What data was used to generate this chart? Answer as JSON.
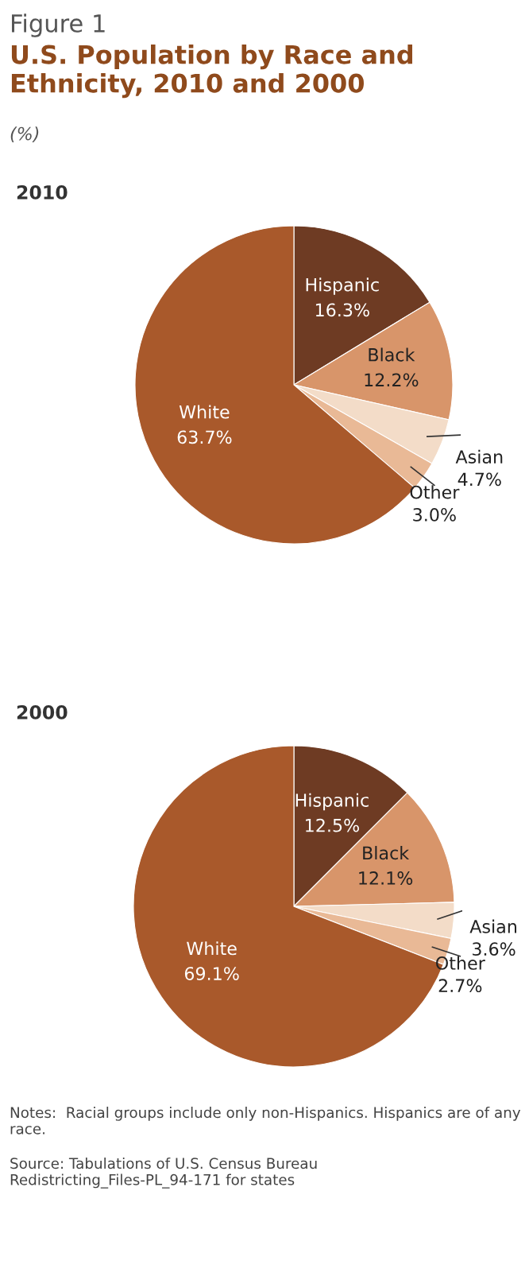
{
  "chart_data": [
    {
      "type": "pie",
      "title": "2010",
      "annotations": [
        "Figure 1",
        "U.S. Population by Race and Ethnicity, 2010 and 2000",
        "(%)"
      ],
      "categories": [
        "Hispanic",
        "Black",
        "Asian",
        "Other",
        "White"
      ],
      "values": [
        16.3,
        12.2,
        4.7,
        3.0,
        63.7
      ],
      "value_labels": [
        "16.3%",
        "12.2%",
        "4.7%",
        "3.0%",
        "63.7%"
      ],
      "colors": [
        "#6e3b23",
        "#d8956a",
        "#f3dcc8",
        "#e9b996",
        "#a9592b"
      ]
    },
    {
      "type": "pie",
      "title": "2000",
      "annotations": [
        "Notes:  Racial groups include only non-Hispanics. Hispanics are of any race.",
        "Source: Tabulations of U.S. Census Bureau Redistricting_Files-PL_94-171 for states"
      ],
      "categories": [
        "Hispanic",
        "Black",
        "Asian",
        "Other",
        "White"
      ],
      "values": [
        12.5,
        12.1,
        3.6,
        2.7,
        69.1
      ],
      "value_labels": [
        "12.5%",
        "12.1%",
        "3.6%",
        "2.7%",
        "69.1%"
      ],
      "colors": [
        "#6e3b23",
        "#d8956a",
        "#f3dcc8",
        "#e9b996",
        "#a9592b"
      ]
    }
  ]
}
